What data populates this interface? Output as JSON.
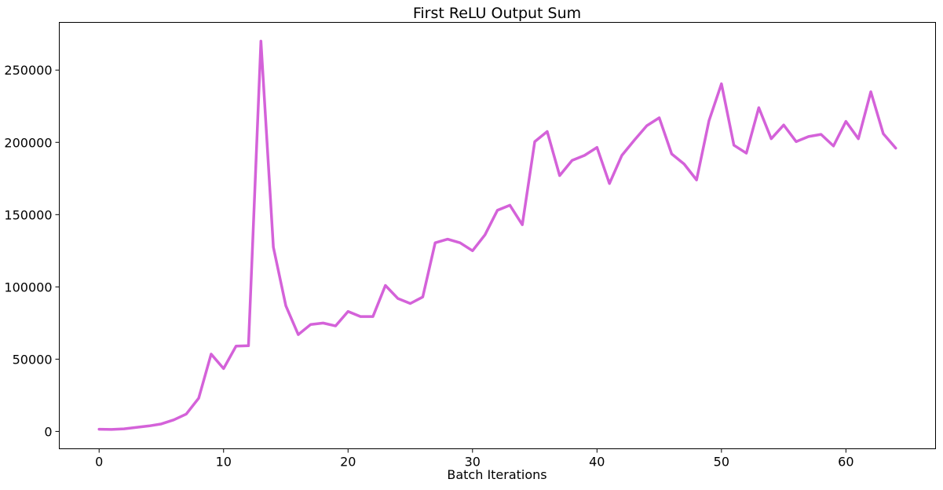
{
  "chart_data": {
    "type": "line",
    "title": "First ReLU Output Sum",
    "xlabel": "Batch Iterations",
    "ylabel": "",
    "xlim": [
      -3.2,
      67.2
    ],
    "ylim": [
      -12000,
      283000
    ],
    "xticks": [
      0,
      10,
      20,
      30,
      40,
      50,
      60
    ],
    "xtick_labels": [
      "0",
      "10",
      "20",
      "30",
      "40",
      "50",
      "60"
    ],
    "yticks": [
      0,
      50000,
      100000,
      150000,
      200000,
      250000
    ],
    "ytick_labels": [
      "0",
      "50000",
      "100000",
      "150000",
      "200000",
      "250000"
    ],
    "grid": false,
    "legend": "none",
    "series": [
      {
        "name": "First ReLU Output Sum",
        "color": "#d462d9",
        "x": [
          0,
          1,
          2,
          3,
          4,
          5,
          6,
          7,
          8,
          9,
          10,
          11,
          12,
          13,
          14,
          15,
          16,
          17,
          18,
          19,
          20,
          21,
          22,
          23,
          24,
          25,
          26,
          27,
          28,
          29,
          30,
          31,
          32,
          33,
          34,
          35,
          36,
          37,
          38,
          39,
          40,
          41,
          42,
          43,
          44,
          45,
          46,
          47,
          48,
          49,
          50,
          51,
          52,
          53,
          54,
          55,
          56,
          57,
          58,
          59,
          60,
          61,
          62,
          63,
          64
        ],
        "values": [
          1500,
          1400,
          1800,
          2800,
          3800,
          5200,
          8000,
          12000,
          23000,
          53500,
          43500,
          59000,
          59300,
          270000,
          127500,
          87000,
          67000,
          74000,
          75000,
          73000,
          83000,
          79500,
          79500,
          101000,
          92000,
          88500,
          93000,
          130500,
          133000,
          130500,
          125000,
          136000,
          153000,
          156500,
          143000,
          200500,
          207500,
          177000,
          187500,
          191000,
          196500,
          171500,
          191000,
          201500,
          211500,
          217000,
          192000,
          185000,
          174000,
          215000,
          240500,
          198000,
          192500,
          224000,
          202500,
          212000,
          200500,
          204000,
          205500,
          197500,
          214500,
          202500,
          235000,
          206000,
          196000
        ]
      }
    ]
  }
}
